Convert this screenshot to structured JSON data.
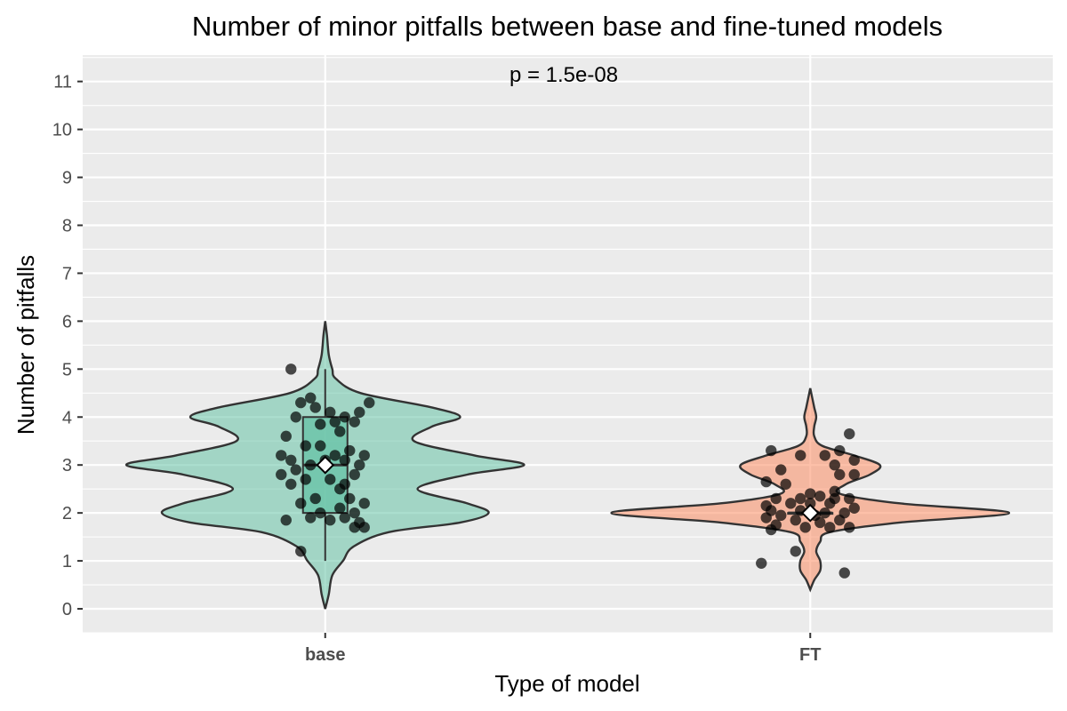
{
  "chart_data": {
    "type": "violin",
    "title": "Number of minor pitfalls between base and fine-tuned models",
    "xlabel": "Type of model",
    "ylabel": "Number of pitfalls",
    "annotation": "p = 1.5e-08",
    "categories": [
      "base",
      "FT"
    ],
    "ylim": [
      -0.5,
      11.55
    ],
    "yticks": [
      0,
      1,
      2,
      3,
      4,
      5,
      6,
      7,
      8,
      9,
      10,
      11
    ],
    "grid": true,
    "legend": "none",
    "series": [
      {
        "category": "base",
        "fill": "#66c2a5",
        "box": {
          "q1": 2,
          "median": 3,
          "q3": 4,
          "whisker_low": 1,
          "whisker_high": 5
        },
        "mean": 3.0,
        "density": [
          [
            0.0,
            0.0
          ],
          [
            0.3,
            0.01
          ],
          [
            0.7,
            0.02
          ],
          [
            1.0,
            0.05
          ],
          [
            1.3,
            0.08
          ],
          [
            1.6,
            0.18
          ],
          [
            1.8,
            0.38
          ],
          [
            2.0,
            0.46
          ],
          [
            2.2,
            0.4
          ],
          [
            2.5,
            0.26
          ],
          [
            2.8,
            0.4
          ],
          [
            3.0,
            0.56
          ],
          [
            3.2,
            0.42
          ],
          [
            3.5,
            0.25
          ],
          [
            3.8,
            0.3
          ],
          [
            4.0,
            0.38
          ],
          [
            4.2,
            0.3
          ],
          [
            4.5,
            0.1
          ],
          [
            4.8,
            0.03
          ],
          [
            5.0,
            0.02
          ],
          [
            5.3,
            0.01
          ],
          [
            5.7,
            0.005
          ],
          [
            6.0,
            0.0
          ]
        ],
        "points": [
          [
            -0.35,
            5.0
          ],
          [
            -0.15,
            4.4
          ],
          [
            -0.25,
            4.3
          ],
          [
            -0.1,
            4.2
          ],
          [
            0.05,
            4.1
          ],
          [
            0.2,
            4.0
          ],
          [
            0.35,
            4.1
          ],
          [
            0.45,
            4.3
          ],
          [
            -0.3,
            4.0
          ],
          [
            0.1,
            3.9
          ],
          [
            0.3,
            3.9
          ],
          [
            -0.05,
            3.85
          ],
          [
            -0.4,
            3.6
          ],
          [
            0.15,
            3.7
          ],
          [
            -0.2,
            3.4
          ],
          [
            0.25,
            3.3
          ],
          [
            0.4,
            3.2
          ],
          [
            -0.35,
            3.1
          ],
          [
            0.0,
            3.1
          ],
          [
            0.2,
            3.1
          ],
          [
            0.35,
            3.0
          ],
          [
            -0.15,
            3.0
          ],
          [
            0.1,
            3.2
          ],
          [
            -0.3,
            2.9
          ],
          [
            0.3,
            2.8
          ],
          [
            -0.45,
            2.8
          ],
          [
            -0.2,
            2.7
          ],
          [
            0.05,
            2.7
          ],
          [
            -0.35,
            2.6
          ],
          [
            0.15,
            2.5
          ],
          [
            -0.1,
            2.3
          ],
          [
            0.25,
            2.3
          ],
          [
            -0.25,
            2.2
          ],
          [
            0.4,
            2.2
          ],
          [
            0.15,
            2.1
          ],
          [
            -0.05,
            2.0
          ],
          [
            0.3,
            2.0
          ],
          [
            -0.15,
            1.9
          ],
          [
            0.2,
            1.9
          ],
          [
            -0.4,
            1.85
          ],
          [
            0.05,
            1.85
          ],
          [
            0.35,
            1.8
          ],
          [
            0.3,
            1.7
          ],
          [
            -0.25,
            1.2
          ],
          [
            0.2,
            2.6
          ],
          [
            -0.45,
            3.2
          ],
          [
            0.4,
            1.7
          ],
          [
            -0.05,
            3.4
          ]
        ]
      },
      {
        "category": "FT",
        "fill": "#fc8d62",
        "box": {
          "q1": 2,
          "median": 2,
          "q3": 2,
          "whisker_low": 2,
          "whisker_high": 2
        },
        "mean": 2.0,
        "density": [
          [
            0.4,
            0.0
          ],
          [
            0.6,
            0.02
          ],
          [
            0.8,
            0.05
          ],
          [
            1.0,
            0.05
          ],
          [
            1.2,
            0.03
          ],
          [
            1.4,
            0.05
          ],
          [
            1.6,
            0.1
          ],
          [
            1.8,
            0.45
          ],
          [
            2.0,
            1.0
          ],
          [
            2.2,
            0.45
          ],
          [
            2.4,
            0.15
          ],
          [
            2.6,
            0.18
          ],
          [
            2.8,
            0.3
          ],
          [
            3.0,
            0.35
          ],
          [
            3.2,
            0.22
          ],
          [
            3.4,
            0.06
          ],
          [
            3.6,
            0.02
          ],
          [
            3.8,
            0.02
          ],
          [
            4.0,
            0.03
          ],
          [
            4.2,
            0.02
          ],
          [
            4.4,
            0.01
          ],
          [
            4.6,
            0.0
          ]
        ],
        "points": [
          [
            -0.5,
            0.95
          ],
          [
            -0.15,
            1.2
          ],
          [
            0.35,
            0.75
          ],
          [
            -0.4,
            3.3
          ],
          [
            -0.1,
            3.2
          ],
          [
            0.15,
            3.2
          ],
          [
            0.3,
            3.3
          ],
          [
            0.25,
            3.0
          ],
          [
            0.45,
            3.1
          ],
          [
            -0.3,
            2.9
          ],
          [
            0.3,
            2.8
          ],
          [
            0.45,
            2.8
          ],
          [
            -0.45,
            2.65
          ],
          [
            -0.25,
            2.6
          ],
          [
            0.4,
            3.65
          ],
          [
            -0.35,
            2.3
          ],
          [
            -0.1,
            2.3
          ],
          [
            0.1,
            2.35
          ],
          [
            0.25,
            2.3
          ],
          [
            0.4,
            2.3
          ],
          [
            -0.45,
            2.15
          ],
          [
            -0.2,
            2.2
          ],
          [
            0.0,
            2.2
          ],
          [
            0.2,
            2.2
          ],
          [
            -0.4,
            2.05
          ],
          [
            -0.1,
            2.05
          ],
          [
            0.15,
            2.0
          ],
          [
            0.35,
            2.0
          ],
          [
            0.45,
            2.1
          ],
          [
            -0.3,
            1.95
          ],
          [
            0.05,
            1.95
          ],
          [
            -0.15,
            1.85
          ],
          [
            0.3,
            1.85
          ],
          [
            -0.45,
            1.9
          ],
          [
            0.1,
            1.8
          ],
          [
            -0.35,
            1.75
          ],
          [
            0.2,
            1.7
          ],
          [
            -0.05,
            1.7
          ],
          [
            0.4,
            1.7
          ],
          [
            -0.4,
            1.65
          ],
          [
            0.0,
            2.4
          ],
          [
            0.25,
            2.45
          ]
        ]
      }
    ]
  }
}
